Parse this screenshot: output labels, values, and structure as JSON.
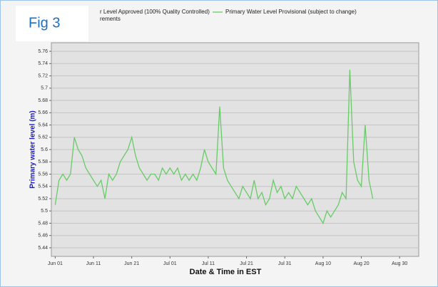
{
  "fig_label": "Fig 3",
  "legend_text": [
    "r Level Approved (100% Quality Controlled)",
    "rements"
  ],
  "chart_data": {
    "type": "line",
    "x_label": "Date & Time in EST",
    "y_label": "Primary water level (m)",
    "x": [
      "Jun 01",
      "Jun 02",
      "Jun 03",
      "Jun 04",
      "Jun 05",
      "Jun 06",
      "Jun 07",
      "Jun 08",
      "Jun 09",
      "Jun 10",
      "Jun 11",
      "Jun 12",
      "Jun 13",
      "Jun 14",
      "Jun 15",
      "Jun 16",
      "Jun 17",
      "Jun 18",
      "Jun 19",
      "Jun 20",
      "Jun 21",
      "Jun 22",
      "Jun 23",
      "Jun 24",
      "Jun 25",
      "Jun 26",
      "Jun 27",
      "Jun 28",
      "Jun 29",
      "Jun 30",
      "Jul 01",
      "Jul 02",
      "Jul 03",
      "Jul 04",
      "Jul 05",
      "Jul 06",
      "Jul 07",
      "Jul 08",
      "Jul 09",
      "Jul 10",
      "Jul 11",
      "Jul 12",
      "Jul 13",
      "Jul 14",
      "Jul 15",
      "Jul 16",
      "Jul 17",
      "Jul 18",
      "Jul 19",
      "Jul 20",
      "Jul 21",
      "Jul 22",
      "Jul 23",
      "Jul 24",
      "Jul 25",
      "Jul 26",
      "Jul 27",
      "Jul 28",
      "Jul 29",
      "Jul 30",
      "Jul 31",
      "Aug 01",
      "Aug 02",
      "Aug 03",
      "Aug 04",
      "Aug 05",
      "Aug 06",
      "Aug 07",
      "Aug 08",
      "Aug 09",
      "Aug 10",
      "Aug 11",
      "Aug 12",
      "Aug 13",
      "Aug 14",
      "Aug 15",
      "Aug 16",
      "Aug 17",
      "Aug 18",
      "Aug 19",
      "Aug 20",
      "Aug 21",
      "Aug 22",
      "Aug 23"
    ],
    "series": [
      {
        "name": "Primary Water Level Provisional (subject to change)",
        "color": "#66cc66",
        "values": [
          5.51,
          5.55,
          5.56,
          5.55,
          5.56,
          5.62,
          5.6,
          5.59,
          5.57,
          5.56,
          5.55,
          5.54,
          5.55,
          5.52,
          5.56,
          5.55,
          5.56,
          5.58,
          5.59,
          5.6,
          5.62,
          5.59,
          5.57,
          5.56,
          5.55,
          5.56,
          5.56,
          5.55,
          5.57,
          5.56,
          5.57,
          5.56,
          5.57,
          5.55,
          5.56,
          5.55,
          5.56,
          5.55,
          5.57,
          5.6,
          5.58,
          5.57,
          5.56,
          5.67,
          5.57,
          5.55,
          5.54,
          5.53,
          5.52,
          5.54,
          5.53,
          5.52,
          5.55,
          5.52,
          5.53,
          5.51,
          5.52,
          5.55,
          5.53,
          5.54,
          5.52,
          5.53,
          5.52,
          5.54,
          5.53,
          5.52,
          5.51,
          5.52,
          5.5,
          5.49,
          5.48,
          5.5,
          5.49,
          5.5,
          5.51,
          5.53,
          5.52,
          5.73,
          5.58,
          5.55,
          5.54,
          5.64,
          5.55,
          5.52
        ]
      }
    ],
    "xlim": [
      "May 31",
      "Sep 04"
    ],
    "xticks": [
      "Jun 01",
      "Jun 11",
      "Jun 21",
      "Jul 01",
      "Jul 11",
      "Jul 21",
      "Jul 31",
      "Aug 10",
      "Aug 20",
      "Aug 30"
    ],
    "ylim": [
      5.426,
      5.774
    ],
    "yticks": [
      5.44,
      5.46,
      5.48,
      5.5,
      5.52,
      5.54,
      5.56,
      5.58,
      5.6,
      5.62,
      5.64,
      5.66,
      5.68,
      5.7,
      5.72,
      5.74,
      5.76
    ],
    "grid": true
  }
}
